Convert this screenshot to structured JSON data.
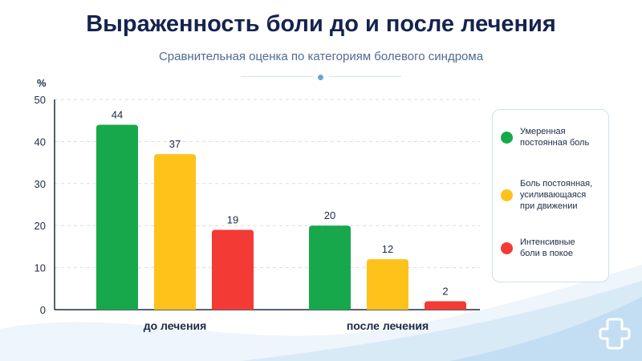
{
  "title": "Выраженность боли до и после лечения",
  "subtitle": "Сравнительная оценка по категориям болевого синдрома",
  "chart_data": {
    "type": "bar",
    "ylabel": "%",
    "ylim": [
      0,
      50
    ],
    "yticks": [
      0,
      10,
      20,
      30,
      40,
      50
    ],
    "grid": true,
    "legend_position": "right",
    "categories": [
      "до лечения",
      "после лечения"
    ],
    "series": [
      {
        "name": "Умеренная постоянная боль",
        "color": "#18a84c",
        "values": [
          44,
          20
        ]
      },
      {
        "name": "Боль постоянная, усиливающаяся при движении",
        "color": "#ffc21a",
        "values": [
          37,
          12
        ]
      },
      {
        "name": "Интенсивные боли в покое",
        "color": "#f33a35",
        "values": [
          19,
          2
        ]
      }
    ]
  },
  "legend": {
    "items": [
      {
        "lines": [
          "Умеренная",
          "постоянная боль"
        ],
        "color": "#18a84c"
      },
      {
        "lines": [
          "Боль постоянная,",
          "усиливающаяся",
          "при движении"
        ],
        "color": "#ffc21a"
      },
      {
        "lines": [
          "Интенсивные",
          "боли в покое"
        ],
        "color": "#f33a35"
      }
    ]
  }
}
